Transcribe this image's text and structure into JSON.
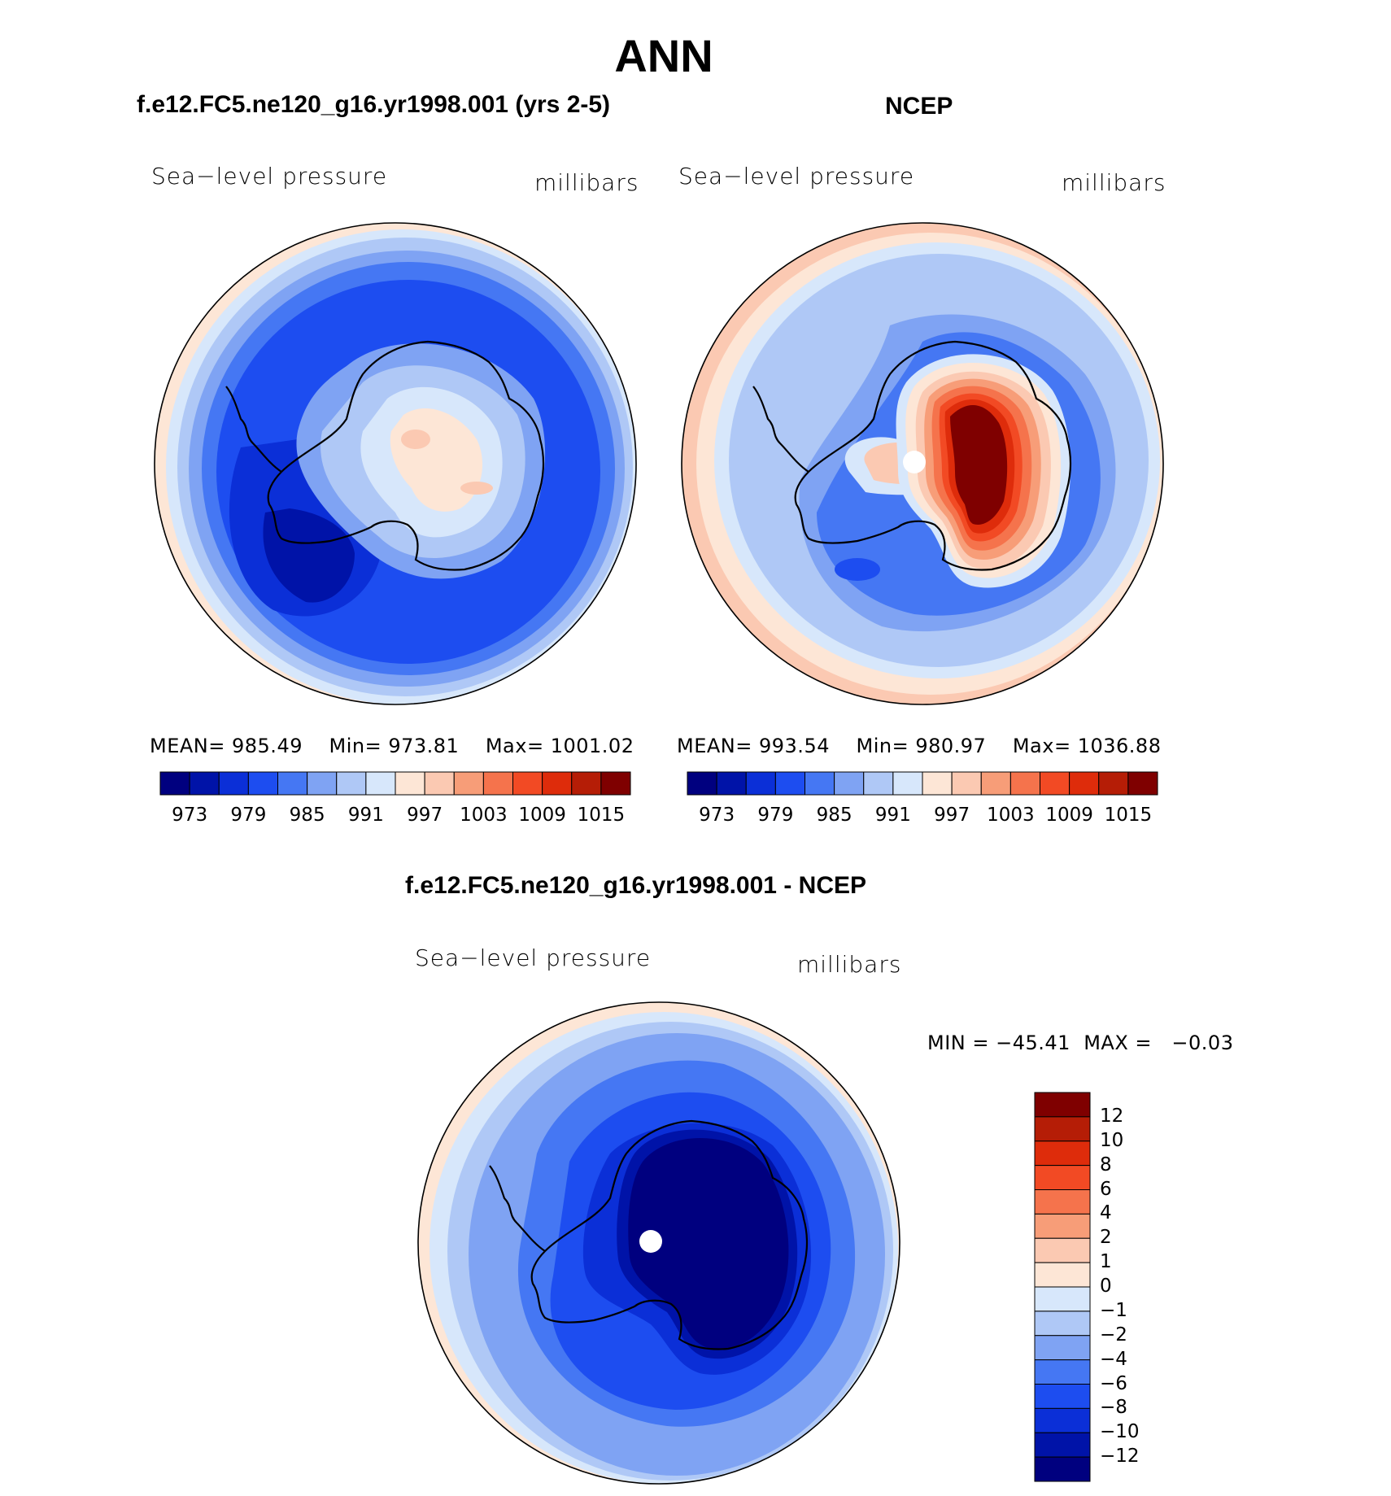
{
  "figure": {
    "title": "ANN"
  },
  "panels": [
    {
      "title": "f.e12.FC5.ne120_g16.yr1998.001 (yrs 2-5)",
      "variable": "Sea−level pressure",
      "units": "millibars",
      "stats": {
        "mean_label": "MEAN=",
        "mean": "985.49",
        "min_label": "Min=",
        "min": "973.81",
        "max_label": "Max=",
        "max": "1001.02"
      },
      "colorbar_ticks": [
        "973",
        "979",
        "985",
        "991",
        "997",
        "1003",
        "1009",
        "1015"
      ]
    },
    {
      "title": "NCEP",
      "variable": "Sea−level pressure",
      "units": "millibars",
      "stats": {
        "mean_label": "MEAN=",
        "mean": "993.54",
        "min_label": "Min=",
        "min": "980.97",
        "max_label": "Max=",
        "max": "1036.88"
      },
      "colorbar_ticks": [
        "973",
        "979",
        "985",
        "991",
        "997",
        "1003",
        "1009",
        "1015"
      ]
    },
    {
      "title": "f.e12.FC5.ne120_g16.yr1998.001 - NCEP",
      "variable": "Sea−level pressure",
      "units": "millibars",
      "stats": {
        "min_label": "MIN =",
        "min": "−45.41",
        "max_label": "MAX =",
        "max": "−0.03"
      },
      "colorbar_ticks": [
        "12",
        "10",
        "8",
        "6",
        "4",
        "2",
        "1",
        "0",
        "−1",
        "−2",
        "−4",
        "−6",
        "−8",
        "−10",
        "−12"
      ]
    }
  ],
  "colors": {
    "abs_scale": [
      "#00007f",
      "#0013a8",
      "#0b2fd7",
      "#1d4df0",
      "#4577f3",
      "#7fa3f3",
      "#afc8f6",
      "#d7e7fb",
      "#fde6d6",
      "#fbc9b2",
      "#f79d78",
      "#f5734c",
      "#f24a24",
      "#de2c0b",
      "#b51d06",
      "#7f0000"
    ],
    "diff_scale": [
      "#7f0000",
      "#b51d06",
      "#de2c0b",
      "#f24a24",
      "#f5734c",
      "#f79d78",
      "#fbc9b2",
      "#fde6d6",
      "#d7e7fb",
      "#afc8f6",
      "#7fa3f3",
      "#4577f3",
      "#1d4df0",
      "#0b2fd7",
      "#0013a8",
      "#00007f"
    ]
  }
}
